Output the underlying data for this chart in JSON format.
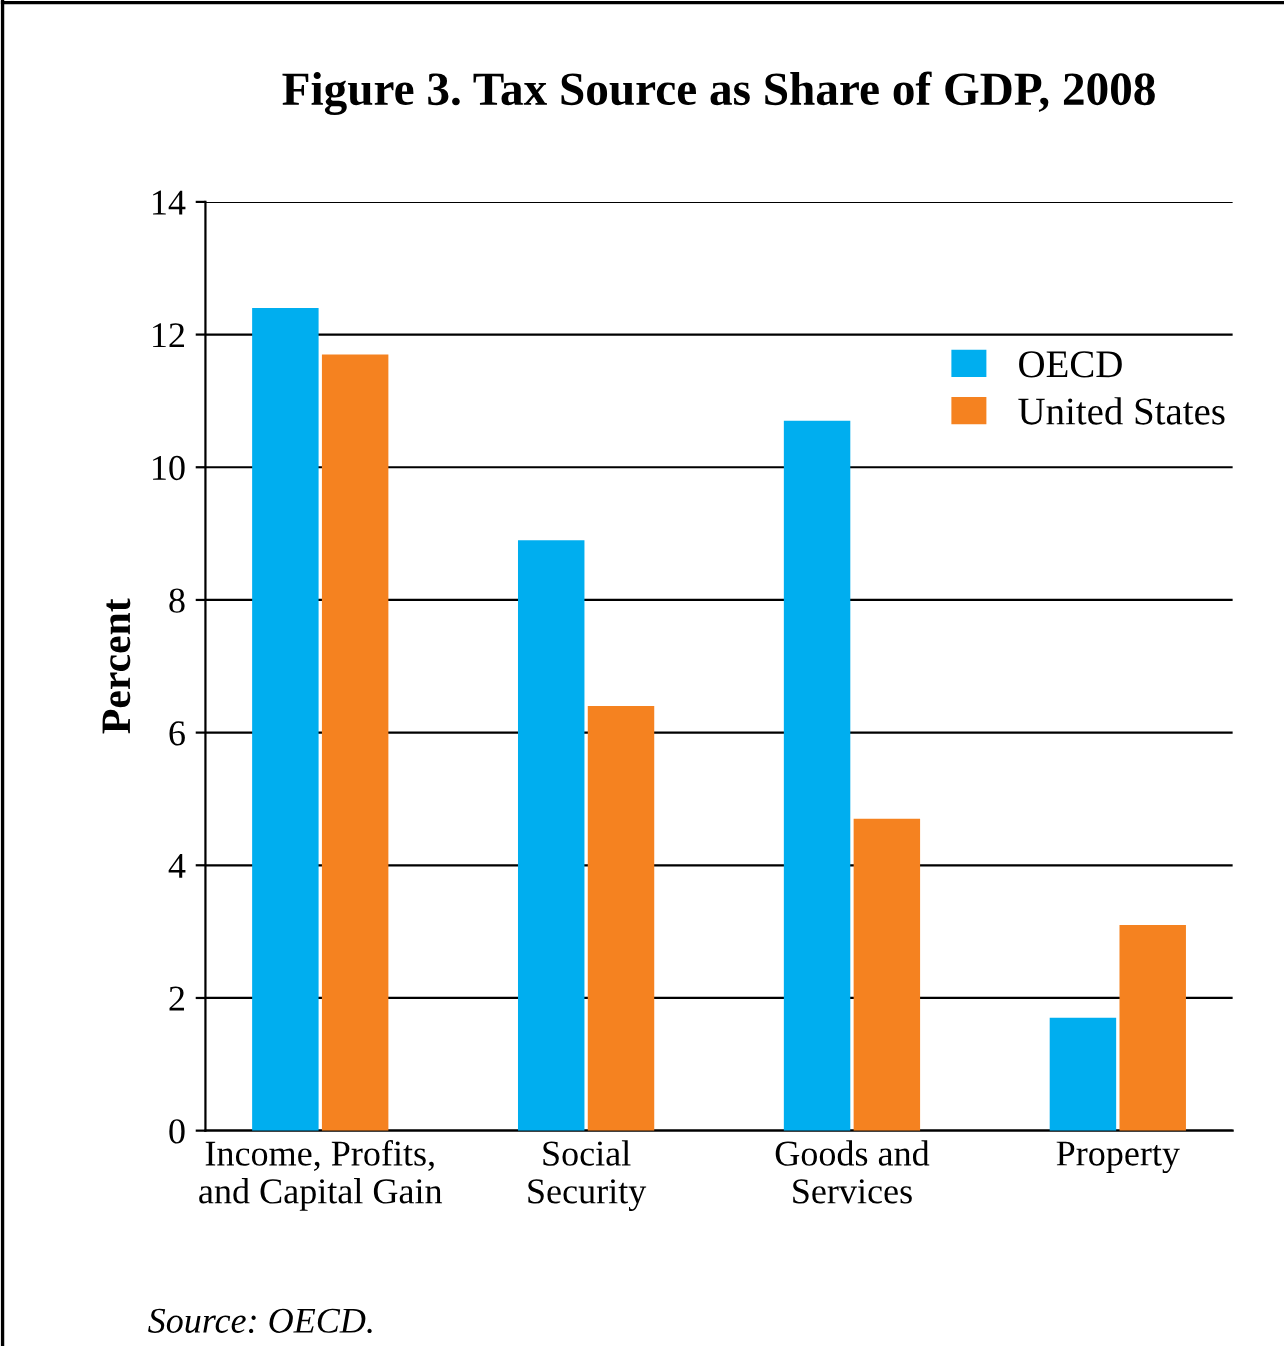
{
  "chart_data": {
    "type": "bar",
    "title": "Figure 3. Tax Source as Share of GDP, 2008",
    "ylabel": "Percent",
    "categories": [
      "Income, Profits,\nand Capital Gain",
      "Social\nSecurity",
      "Goods and\nServices",
      "Property"
    ],
    "series": [
      {
        "name": "OECD",
        "color": "#00aeef",
        "values": [
          12.4,
          8.9,
          10.7,
          1.7
        ]
      },
      {
        "name": "United States",
        "color": "#f58220",
        "values": [
          11.7,
          6.4,
          4.7,
          3.1
        ]
      }
    ],
    "ylim": [
      0,
      14
    ],
    "yticks": [
      0,
      2,
      4,
      6,
      8,
      10,
      12,
      14
    ],
    "grid": "y",
    "legend": "top right",
    "annotations": [
      "Source: OECD."
    ]
  }
}
